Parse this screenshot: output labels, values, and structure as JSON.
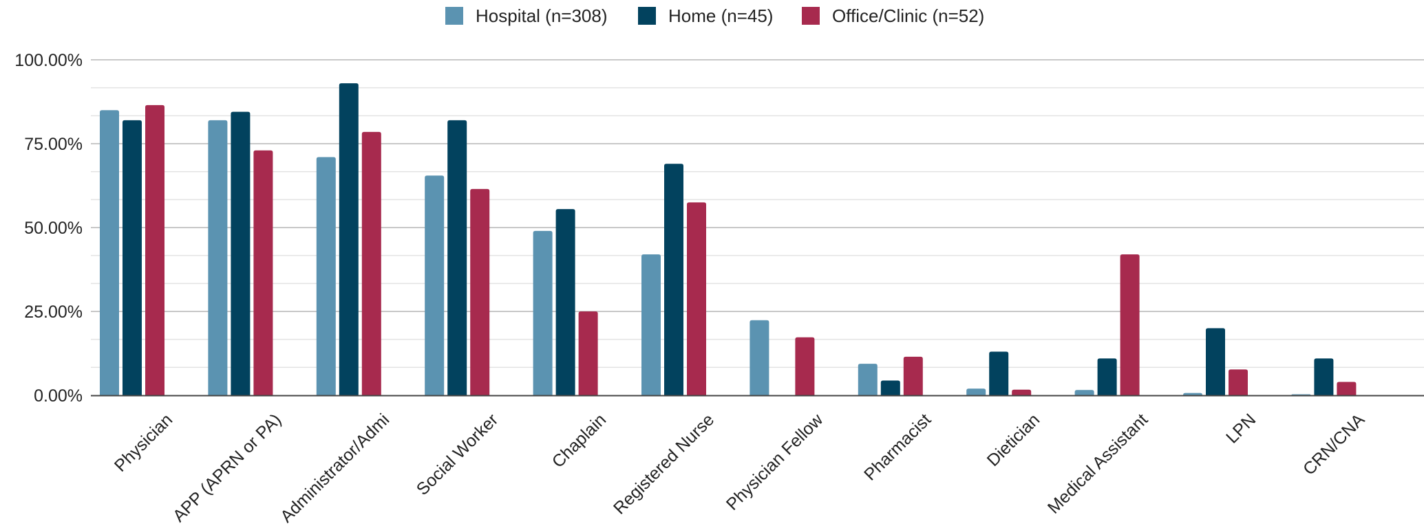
{
  "chart_data": {
    "type": "bar",
    "categories": [
      "Physician",
      "APP (APRN or PA)",
      "Administrator/Admi",
      "Social Worker",
      "Chaplain",
      "Registered Nurse",
      "Physician Fellow",
      "Pharmacist",
      "Dietician",
      "Medical Assistant",
      "LPN",
      "CRN/CNA"
    ],
    "series": [
      {
        "name": "Hospital (n=308)",
        "color": "#5b93b1",
        "values": [
          0.85,
          0.82,
          0.71,
          0.655,
          0.49,
          0.42,
          0.224,
          0.094,
          0.02,
          0.016,
          0.007,
          0.003
        ]
      },
      {
        "name": "Home (n=45)",
        "color": "#02425e",
        "values": [
          0.82,
          0.845,
          0.93,
          0.82,
          0.555,
          0.69,
          0.0,
          0.044,
          0.13,
          0.11,
          0.2,
          0.11
        ]
      },
      {
        "name": "Office/Clinic (n=52)",
        "color": "#a72a4e",
        "values": [
          0.865,
          0.73,
          0.785,
          0.615,
          0.25,
          0.575,
          0.173,
          0.115,
          0.017,
          0.42,
          0.077,
          0.04
        ]
      }
    ],
    "y_ticks": [
      "0.00%",
      "25.00%",
      "50.00%",
      "75.00%",
      "100.00%"
    ],
    "ylim": [
      0,
      1
    ],
    "grid": true,
    "legend_position": "top-center"
  }
}
